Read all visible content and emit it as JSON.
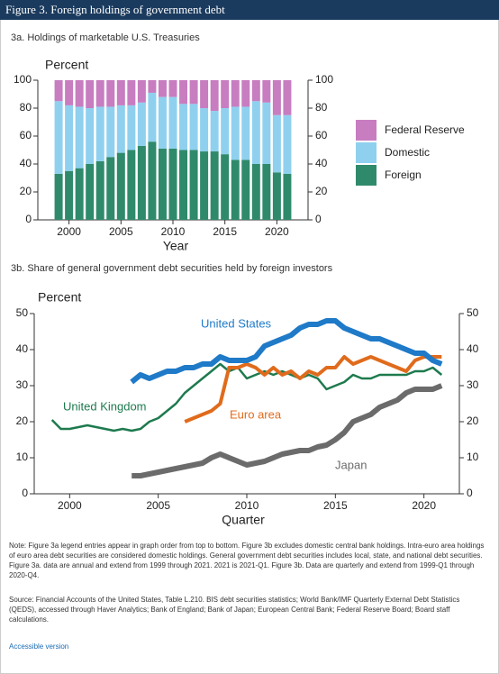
{
  "header": {
    "title": "Figure 3. Foreign holdings of government debt"
  },
  "chart_data": [
    {
      "type": "bar",
      "stacked": true,
      "title": "3a. Holdings of marketable U.S. Treasuries",
      "y_label": "Percent",
      "x_label": "Year",
      "x": [
        1999,
        2000,
        2001,
        2002,
        2003,
        2004,
        2005,
        2006,
        2007,
        2008,
        2009,
        2010,
        2011,
        2012,
        2013,
        2014,
        2015,
        2016,
        2017,
        2018,
        2019,
        2020,
        2021
      ],
      "series": [
        {
          "name": "Foreign",
          "color": "#2f8a6b",
          "values": [
            33,
            35,
            37,
            40,
            42,
            45,
            48,
            50,
            53,
            56,
            51,
            51,
            50,
            50,
            49,
            49,
            47,
            43,
            43,
            40,
            40,
            34,
            33
          ]
        },
        {
          "name": "Domestic",
          "color": "#8fd0ef",
          "values": [
            52,
            47,
            44,
            40,
            39,
            36,
            34,
            32,
            31,
            35,
            37,
            37,
            33,
            33,
            31,
            29,
            33,
            38,
            38,
            45,
            44,
            41,
            42
          ]
        },
        {
          "name": "Federal Reserve",
          "color": "#c77dc0",
          "values": [
            15,
            18,
            19,
            20,
            19,
            19,
            18,
            18,
            16,
            9,
            12,
            12,
            17,
            17,
            20,
            22,
            20,
            19,
            19,
            15,
            16,
            25,
            25
          ]
        }
      ],
      "xlim": [
        1997,
        2023
      ],
      "xticks": [
        2000,
        2005,
        2010,
        2015,
        2020
      ],
      "ylim": [
        0,
        100
      ],
      "yticks": [
        0,
        20,
        40,
        60,
        80,
        100
      ],
      "y2lim": [
        0,
        100
      ],
      "y2ticks": [
        0,
        20,
        40,
        60,
        80,
        100
      ]
    },
    {
      "type": "line",
      "title": "3b. Share of general government debt securities held by foreign investors",
      "y_label": "Percent",
      "x_label": "Quarter",
      "x": [
        1999,
        1999.5,
        2000,
        2000.5,
        2001,
        2001.5,
        2002,
        2002.5,
        2003,
        2003.5,
        2004,
        2004.5,
        2005,
        2005.5,
        2006,
        2006.5,
        2007,
        2007.5,
        2008,
        2008.5,
        2009,
        2009.5,
        2010,
        2010.5,
        2011,
        2011.5,
        2012,
        2012.5,
        2013,
        2013.5,
        2014,
        2014.5,
        2015,
        2015.5,
        2016,
        2016.5,
        2017,
        2017.5,
        2018,
        2018.5,
        2019,
        2019.5,
        2020,
        2020.5,
        2021
      ],
      "series": [
        {
          "name": "Japan",
          "color": "#6b6b6b",
          "values": [
            null,
            null,
            null,
            null,
            null,
            null,
            null,
            null,
            null,
            5,
            5,
            5.5,
            6,
            6.5,
            7,
            7.5,
            8,
            8.5,
            10,
            11,
            10,
            9,
            8,
            8.5,
            9,
            10,
            11,
            11.5,
            12,
            12,
            13,
            13.5,
            15,
            17,
            20,
            21,
            22,
            24,
            25,
            26,
            28,
            29,
            29,
            29,
            30
          ]
        },
        {
          "name": "United Kingdom",
          "color": "#1e7a4e",
          "values": [
            20.5,
            18,
            18,
            18.5,
            19,
            18.5,
            18,
            17.5,
            18,
            17.5,
            18,
            20,
            21,
            23,
            25,
            28,
            30,
            32,
            34,
            36,
            34,
            35,
            32,
            33,
            34,
            33,
            34,
            33,
            32,
            33,
            32,
            29,
            30,
            31,
            33,
            32,
            32,
            33,
            33,
            33,
            33,
            34,
            34,
            35,
            33
          ]
        },
        {
          "name": "Euro area",
          "color": "#e06b1c",
          "values": [
            null,
            null,
            null,
            null,
            null,
            null,
            null,
            null,
            null,
            null,
            null,
            null,
            null,
            null,
            null,
            20,
            21,
            22,
            23,
            25,
            35,
            35,
            36,
            35,
            33,
            35,
            33,
            34,
            32,
            34,
            33,
            35,
            35,
            38,
            36,
            37,
            38,
            37,
            36,
            35,
            34,
            37,
            38,
            38,
            38
          ]
        },
        {
          "name": "United States",
          "color": "#1f7ac8",
          "values": [
            null,
            null,
            null,
            null,
            null,
            null,
            null,
            null,
            null,
            31,
            33,
            32,
            33,
            34,
            34,
            35,
            35,
            36,
            36,
            38,
            37,
            37,
            37,
            38,
            41,
            42,
            43,
            44,
            46,
            47,
            47,
            48,
            48,
            46,
            45,
            44,
            43,
            43,
            42,
            41,
            40,
            39,
            39,
            37,
            36
          ]
        }
      ],
      "xlim": [
        1998,
        2022
      ],
      "xticks": [
        2000,
        2005,
        2010,
        2015,
        2020
      ],
      "ylim": [
        0,
        50
      ],
      "yticks": [
        0,
        10,
        20,
        30,
        40,
        50
      ],
      "y2lim": [
        0,
        50
      ],
      "y2ticks": [
        0,
        10,
        20,
        30,
        40,
        50
      ]
    }
  ],
  "notes": "Note: Figure 3a legend entries appear in graph order from top to bottom. Figure 3b excludes domestic central bank holdings. Intra-euro area holdings of euro area debt securities are considered domestic holdings. General government debt securities includes local, state, and national debt securities. Figure 3a. data are annual and extend from 1999 through 2021. 2021 is 2021-Q1. Figure 3b. Data are quarterly and extend from 1999-Q1 through 2020-Q4.",
  "source": "Source: Financial Accounts of the United States, Table L.210. BIS debt securities statistics; World Bank/IMF Quarterly External Debt Statistics (QEDS), accessed through Haver Analytics; Bank of England; Bank of Japan; European Central Bank; Federal Reserve Board; Board staff calculations.",
  "link": "Accessible version"
}
